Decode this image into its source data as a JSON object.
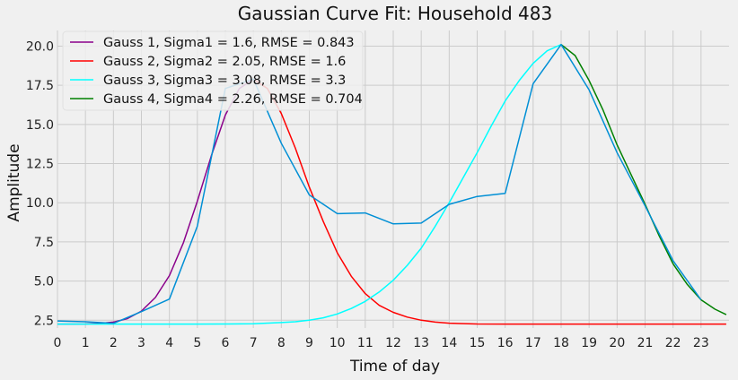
{
  "chart_data": {
    "type": "line",
    "title": "Gaussian Curve Fit: Household 483",
    "xlabel": "Time of day",
    "ylabel": "Amplitude",
    "xlim": [
      0,
      24
    ],
    "ylim": [
      2.0,
      21.0
    ],
    "grid": true,
    "legend_position": "top-left",
    "x_ticks": [
      "0",
      "1",
      "2",
      "3",
      "4",
      "5",
      "6",
      "7",
      "8",
      "9",
      "10",
      "11",
      "12",
      "13",
      "14",
      "15",
      "16",
      "17",
      "18",
      "19",
      "20",
      "21",
      "22",
      "23"
    ],
    "y_ticks": [
      "2.5",
      "5.0",
      "7.5",
      "10.0",
      "12.5",
      "15.0",
      "17.5",
      "20.0"
    ],
    "observed": {
      "color": "#008fd5",
      "x": [
        0,
        1,
        2,
        3,
        4,
        5,
        6,
        7,
        8,
        9,
        10,
        11,
        12,
        13,
        14,
        15,
        16,
        17,
        18,
        19,
        20,
        21,
        22,
        23
      ],
      "y": [
        2.45,
        2.4,
        2.3,
        3.05,
        3.85,
        8.5,
        17.3,
        17.9,
        13.8,
        10.5,
        9.3,
        9.35,
        8.65,
        8.7,
        9.9,
        10.4,
        10.6,
        17.6,
        20.1,
        17.2,
        13.2,
        9.8,
        6.3,
        3.8
      ]
    },
    "series": [
      {
        "name": "Gauss 1, Sigma1 = 1.6, RMSE = 0.843",
        "color": "#8b008b",
        "x": [
          0,
          0.5,
          1,
          1.5,
          2,
          2.5,
          3,
          3.5,
          4,
          4.5,
          5,
          5.5,
          6,
          6.5,
          7
        ],
        "y": [
          2.25,
          2.25,
          2.26,
          2.29,
          2.38,
          2.6,
          3.08,
          3.95,
          5.35,
          7.45,
          10.1,
          13.0,
          15.6,
          17.3,
          17.9
        ]
      },
      {
        "name": "Gauss 2, Sigma2 = 2.05, RMSE = 1.6",
        "color": "#ff0000",
        "x": [
          7,
          7.5,
          8,
          8.5,
          9,
          9.5,
          10,
          10.5,
          11,
          11.5,
          12,
          12.5,
          13,
          13.5,
          14,
          15,
          16,
          17,
          18,
          19,
          20,
          21,
          22,
          23,
          23.9
        ],
        "y": [
          17.9,
          17.3,
          15.7,
          13.5,
          11.0,
          8.8,
          6.8,
          5.3,
          4.2,
          3.45,
          3.0,
          2.7,
          2.5,
          2.38,
          2.31,
          2.26,
          2.25,
          2.25,
          2.25,
          2.25,
          2.25,
          2.25,
          2.25,
          2.25,
          2.25
        ]
      },
      {
        "name": "Gauss 3, Sigma3 = 3.08, RMSE = 3.3",
        "color": "#00ffff",
        "x": [
          0,
          1,
          2,
          3,
          4,
          5,
          6,
          7,
          8,
          8.5,
          9,
          9.5,
          10,
          10.5,
          11,
          11.5,
          12,
          12.5,
          13,
          13.5,
          14,
          14.5,
          15,
          15.5,
          16,
          16.5,
          17,
          17.5,
          18
        ],
        "y": [
          2.25,
          2.25,
          2.25,
          2.25,
          2.25,
          2.25,
          2.26,
          2.27,
          2.35,
          2.4,
          2.5,
          2.65,
          2.9,
          3.25,
          3.7,
          4.3,
          5.05,
          6.0,
          7.1,
          8.5,
          10.0,
          11.6,
          13.2,
          14.9,
          16.5,
          17.8,
          18.9,
          19.7,
          20.1
        ]
      },
      {
        "name": "Gauss 4, Sigma4 = 2.26, RMSE = 0.704",
        "color": "#008000",
        "x": [
          18,
          18.5,
          19,
          19.5,
          20,
          20.5,
          21,
          21.5,
          22,
          22.5,
          23,
          23.5,
          23.9
        ],
        "y": [
          20.1,
          19.4,
          17.8,
          15.9,
          13.7,
          11.8,
          9.9,
          7.9,
          6.1,
          4.8,
          3.8,
          3.2,
          2.85
        ]
      }
    ]
  }
}
